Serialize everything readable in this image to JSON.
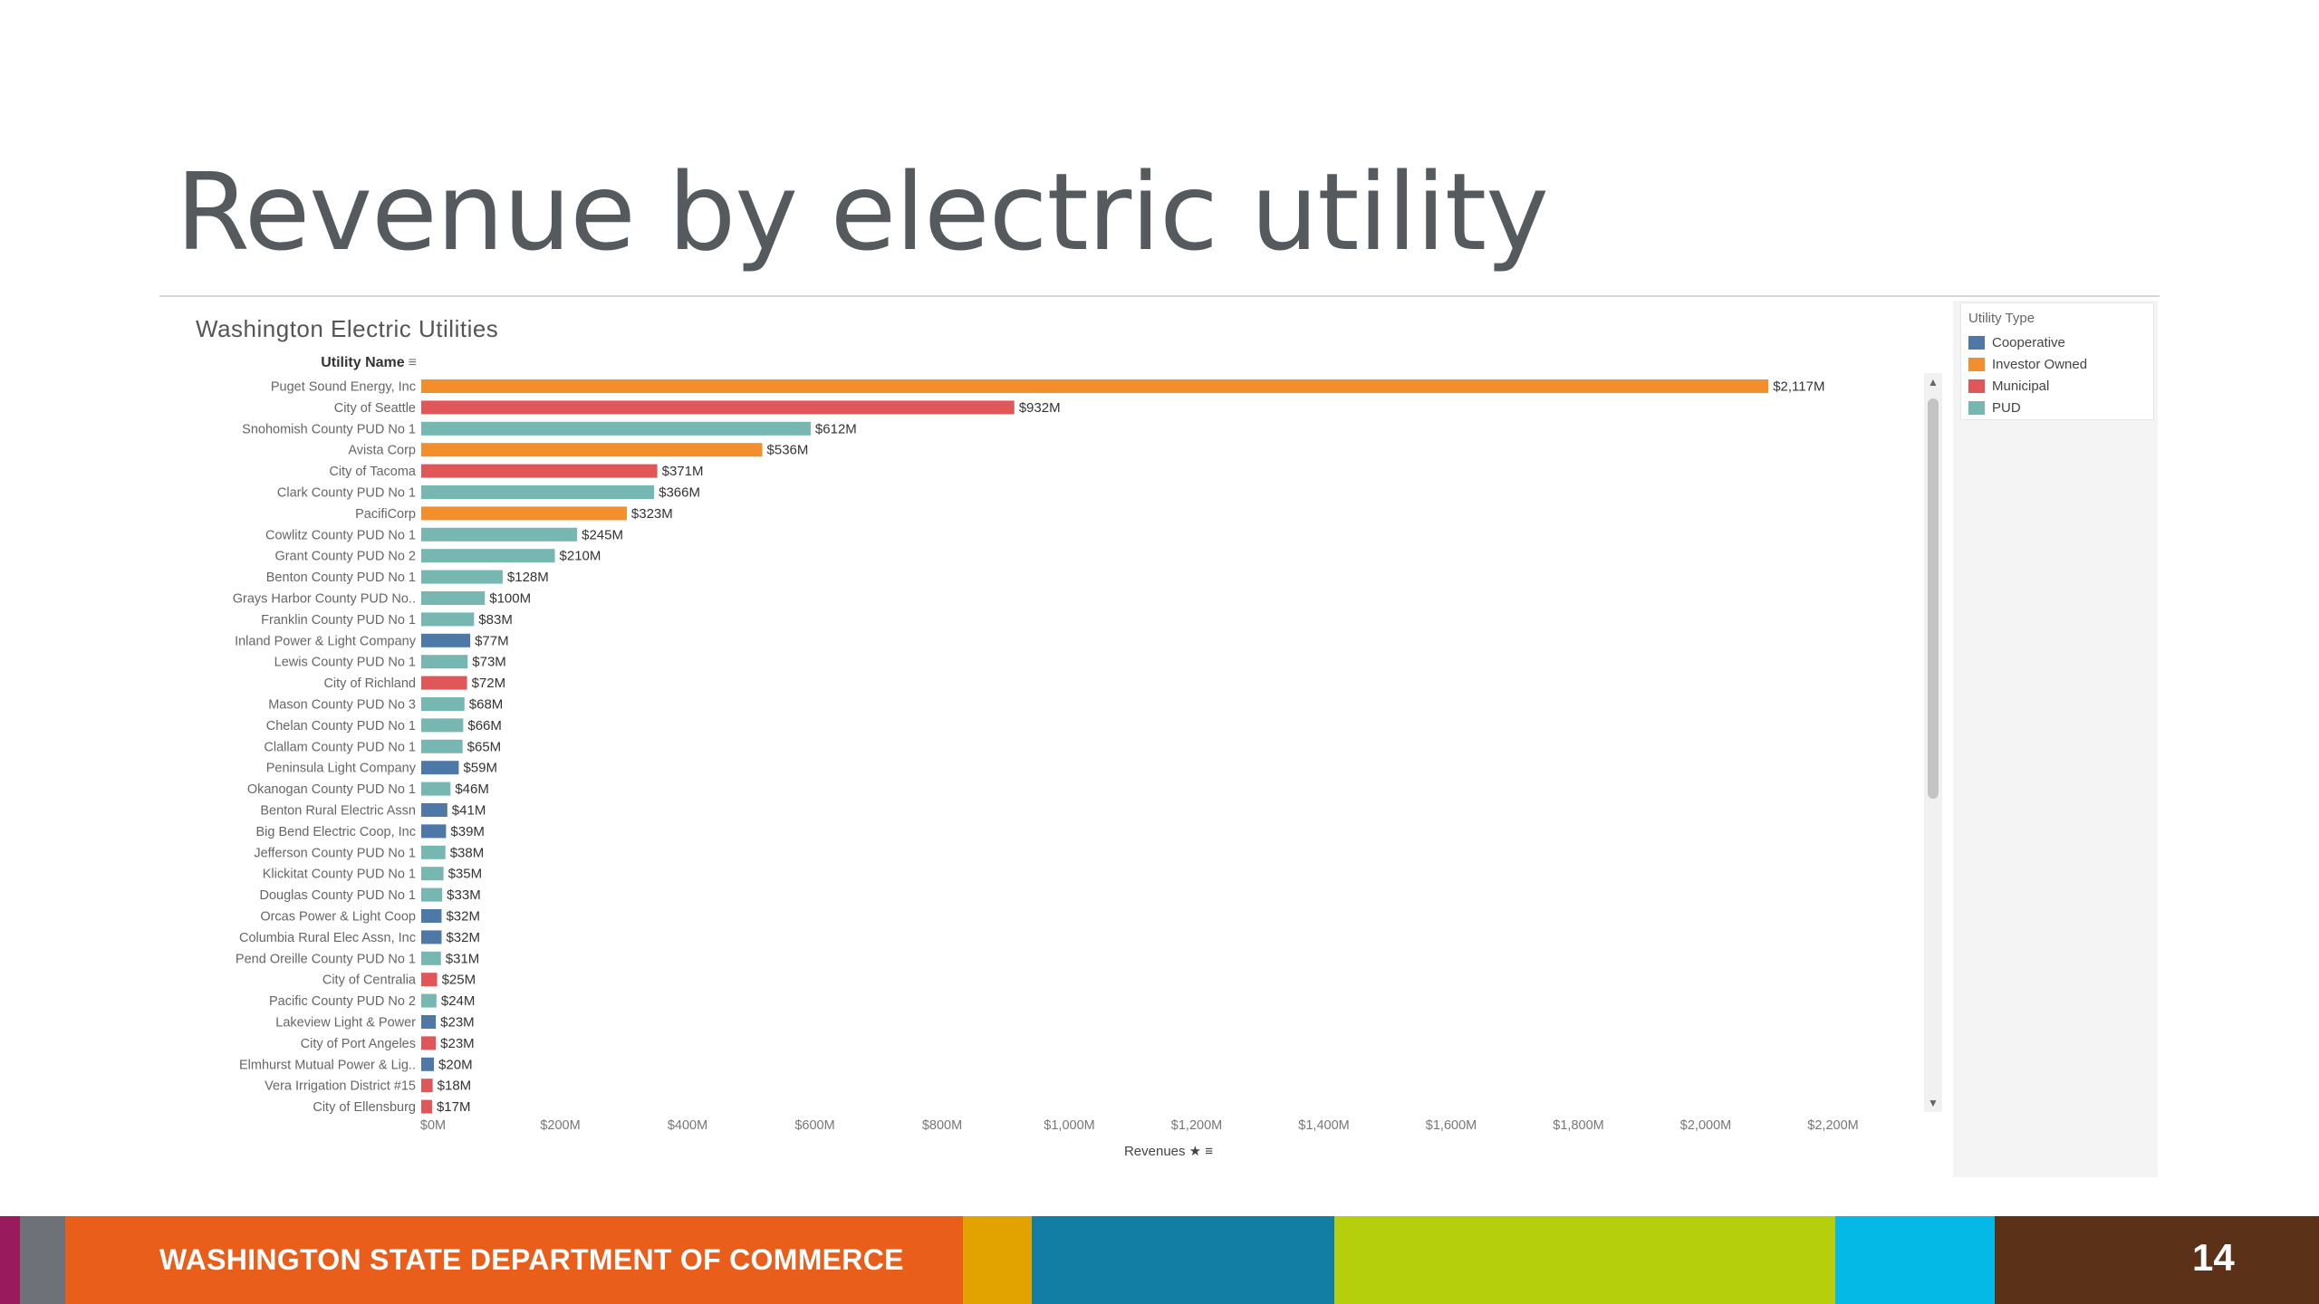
{
  "slide": {
    "title": "Revenue by electric utility",
    "footer_text": "WASHINGTON STATE DEPARTMENT OF COMMERCE",
    "page_number": "14",
    "footer_colors": [
      "#9a1a5e",
      "#6e7177",
      "#e95e1b",
      "#e2a300",
      "#127ea3",
      "#b6cf0d",
      "#04b9e6",
      "#5b3117"
    ]
  },
  "viz": {
    "title": "Washington Electric Utilities",
    "row_header": "Utility Name",
    "x_axis_title": "Revenues",
    "legend": {
      "title": "Utility Type",
      "items": [
        {
          "label": "Cooperative",
          "color": "#4e79a7"
        },
        {
          "label": "Investor Owned",
          "color": "#f28e2b"
        },
        {
          "label": "Municipal",
          "color": "#e15759"
        },
        {
          "label": "PUD",
          "color": "#76b7b2"
        }
      ]
    }
  },
  "chart_data": {
    "type": "bar",
    "orientation": "horizontal",
    "title": "Washington Electric Utilities",
    "xlabel": "Revenues",
    "ylabel": "Utility Name",
    "xlim": [
      0,
      2250
    ],
    "x_ticks": [
      "$0M",
      "$200M",
      "$400M",
      "$600M",
      "$800M",
      "$1,000M",
      "$1,200M",
      "$1,400M",
      "$1,600M",
      "$1,800M",
      "$2,000M",
      "$2,200M"
    ],
    "legend_position": "right",
    "grid": false,
    "categories": [
      "Puget Sound Energy, Inc",
      "City of Seattle",
      "Snohomish County PUD No 1",
      "Avista Corp",
      "City of Tacoma",
      "Clark County PUD No 1",
      "PacifiCorp",
      "Cowlitz County PUD No 1",
      "Grant County PUD No 2",
      "Benton County PUD No 1",
      "Grays Harbor County PUD No..",
      "Franklin County PUD No 1",
      "Inland Power & Light Company",
      "Lewis County PUD No 1",
      "City of Richland",
      "Mason County PUD No 3",
      "Chelan County PUD No 1",
      "Clallam County PUD No 1",
      "Peninsula Light Company",
      "Okanogan County PUD No 1",
      "Benton Rural Electric Assn",
      "Big Bend Electric Coop, Inc",
      "Jefferson County PUD No 1",
      "Klickitat County PUD No 1",
      "Douglas County PUD No 1",
      "Orcas Power & Light Coop",
      "Columbia Rural Elec Assn, Inc",
      "Pend Oreille County PUD No 1",
      "City of Centralia",
      "Pacific County PUD No 2",
      "Lakeview Light & Power",
      "City of Port Angeles",
      "Elmhurst Mutual Power & Lig..",
      "Vera Irrigation District #15",
      "City of Ellensburg"
    ],
    "values": [
      2117,
      932,
      612,
      536,
      371,
      366,
      323,
      245,
      210,
      128,
      100,
      83,
      77,
      73,
      72,
      68,
      66,
      65,
      59,
      46,
      41,
      39,
      38,
      35,
      33,
      32,
      32,
      31,
      25,
      24,
      23,
      23,
      20,
      18,
      17
    ],
    "value_labels": [
      "$2,117M",
      "$932M",
      "$612M",
      "$536M",
      "$371M",
      "$366M",
      "$323M",
      "$245M",
      "$210M",
      "$128M",
      "$100M",
      "$83M",
      "$77M",
      "$73M",
      "$72M",
      "$68M",
      "$66M",
      "$65M",
      "$59M",
      "$46M",
      "$41M",
      "$39M",
      "$38M",
      "$35M",
      "$33M",
      "$32M",
      "$32M",
      "$31M",
      "$25M",
      "$24M",
      "$23M",
      "$23M",
      "$20M",
      "$18M",
      "$17M"
    ],
    "types": [
      "Investor Owned",
      "Municipal",
      "PUD",
      "Investor Owned",
      "Municipal",
      "PUD",
      "Investor Owned",
      "PUD",
      "PUD",
      "PUD",
      "PUD",
      "PUD",
      "Cooperative",
      "PUD",
      "Municipal",
      "PUD",
      "PUD",
      "PUD",
      "Cooperative",
      "PUD",
      "Cooperative",
      "Cooperative",
      "PUD",
      "PUD",
      "PUD",
      "Cooperative",
      "Cooperative",
      "PUD",
      "Municipal",
      "PUD",
      "Cooperative",
      "Municipal",
      "Cooperative",
      "Municipal",
      "Municipal"
    ]
  }
}
